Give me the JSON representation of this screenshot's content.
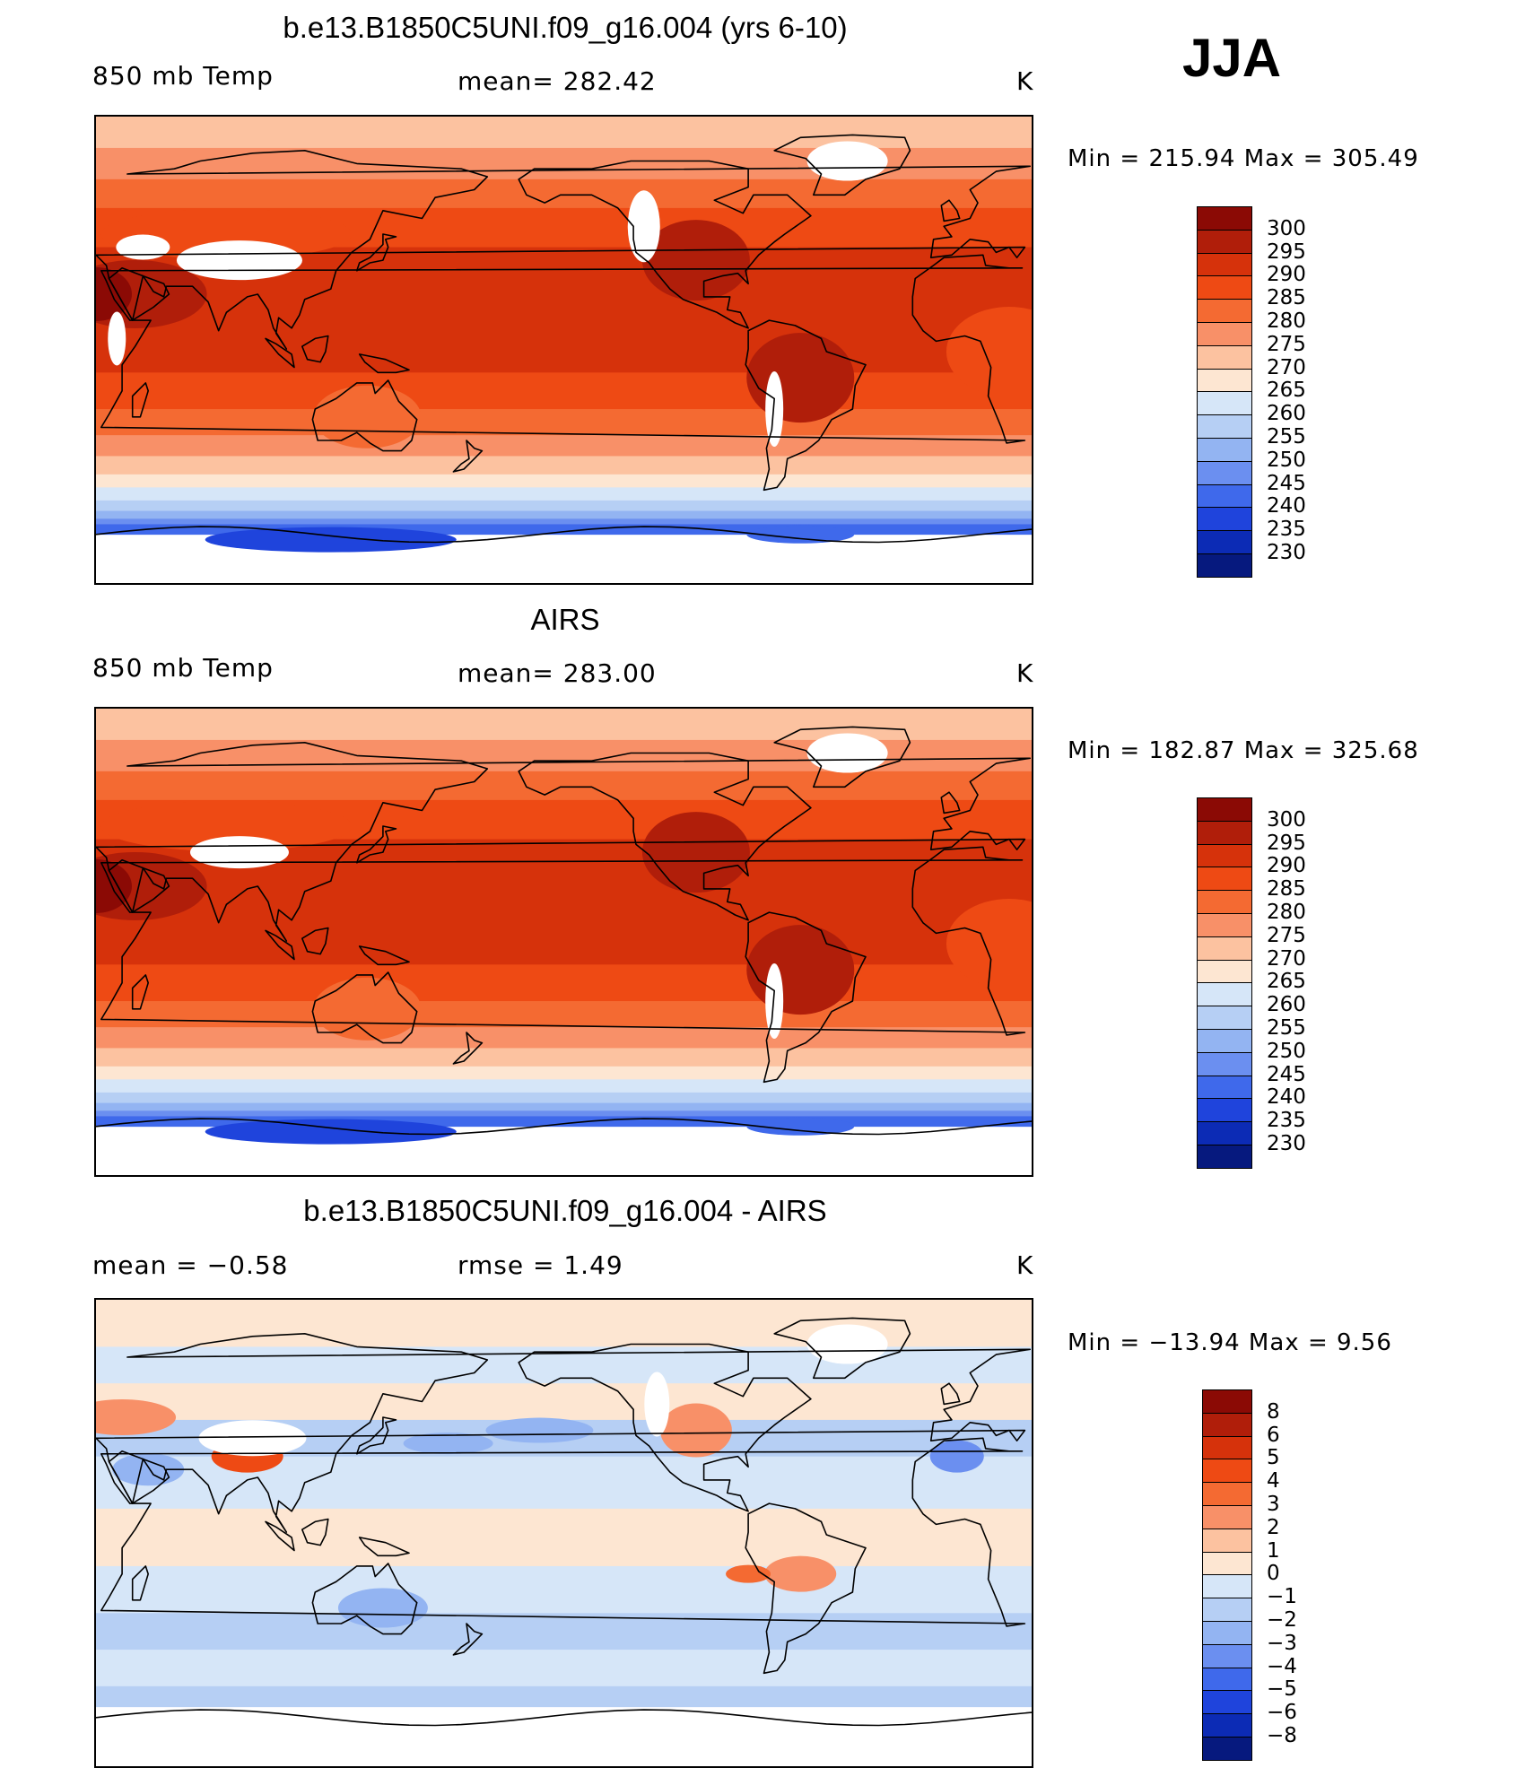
{
  "season": "JJA",
  "panels": [
    {
      "id": "model",
      "title": "b.e13.B1850C5UNI.f09_g16.004 (yrs 6-10)",
      "left": "850 mb Temp",
      "center": "mean=  282.42",
      "units": "K",
      "minmax": "Min  =  215.94  Max  =  305.49",
      "colorbar": {
        "labels": [
          "300",
          "295",
          "290",
          "285",
          "280",
          "275",
          "270",
          "265",
          "260",
          "255",
          "250",
          "245",
          "240",
          "235",
          "230"
        ],
        "colors": [
          "#8b0a05",
          "#b01e0a",
          "#d6320b",
          "#ee4a14",
          "#f46a32",
          "#f89068",
          "#fcc2a0",
          "#fde6d2",
          "#d6e6f8",
          "#b6cff4",
          "#93b4f2",
          "#6b8ff0",
          "#3f69eb",
          "#1f44dc",
          "#0c2bb5",
          "#06197e"
        ]
      },
      "palette": "temp"
    },
    {
      "id": "obs",
      "title": "AIRS",
      "left": "850 mb Temp",
      "center": "mean=  283.00",
      "units": "K",
      "minmax": "Min  =  182.87  Max  =  325.68",
      "colorbar": {
        "labels": [
          "300",
          "295",
          "290",
          "285",
          "280",
          "275",
          "270",
          "265",
          "260",
          "255",
          "250",
          "245",
          "240",
          "235",
          "230"
        ],
        "colors": [
          "#8b0a05",
          "#b01e0a",
          "#d6320b",
          "#ee4a14",
          "#f46a32",
          "#f89068",
          "#fcc2a0",
          "#fde6d2",
          "#d6e6f8",
          "#b6cff4",
          "#93b4f2",
          "#6b8ff0",
          "#3f69eb",
          "#1f44dc",
          "#0c2bb5",
          "#06197e"
        ]
      },
      "palette": "temp"
    },
    {
      "id": "diff",
      "title": "b.e13.B1850C5UNI.f09_g16.004 - AIRS",
      "left": "mean  =    −0.58",
      "center": "rmse  =     1.49",
      "units": "K",
      "minmax": "Min  =  −13.94  Max  =      9.56",
      "colorbar": {
        "labels": [
          "8",
          "6",
          "5",
          "4",
          "3",
          "2",
          "1",
          "0",
          "−1",
          "−2",
          "−3",
          "−4",
          "−5",
          "−6",
          "−8"
        ],
        "colors": [
          "#8b0a05",
          "#b01e0a",
          "#d6320b",
          "#ee4a14",
          "#f46a32",
          "#f89068",
          "#fcc2a0",
          "#fde6d2",
          "#d6e6f8",
          "#b6cff4",
          "#93b4f2",
          "#6b8ff0",
          "#3f69eb",
          "#1f44dc",
          "#0c2bb5",
          "#06197e"
        ]
      },
      "palette": "diff"
    }
  ]
}
